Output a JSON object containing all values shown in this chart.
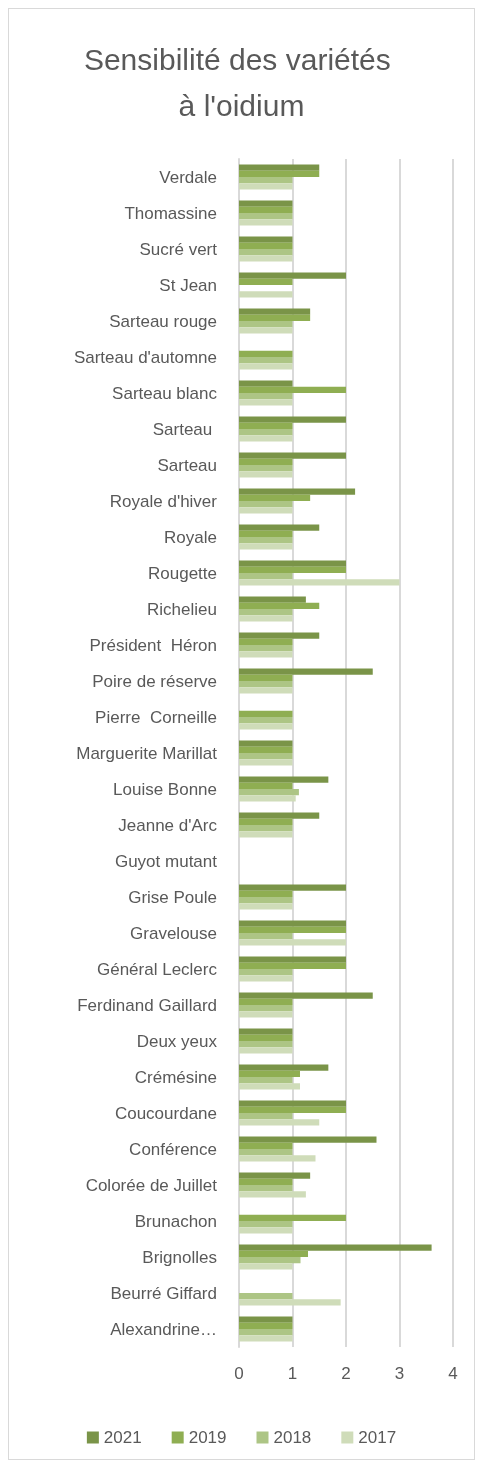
{
  "chart_data": {
    "type": "bar",
    "orientation": "horizontal",
    "title": "Sensibilité des variétés à l'oidium",
    "categories": [
      "Verdale",
      "Thomassine",
      "Sucré vert",
      "St Jean",
      "Sarteau rouge",
      "Sarteau d'automne",
      "Sarteau blanc",
      "Sarteau ",
      "Sarteau",
      "Royale d'hiver",
      "Royale",
      "Rougette",
      "Richelieu",
      "Président  Héron",
      "Poire de réserve",
      "Pierre  Corneille",
      "Marguerite Marillat",
      "Louise Bonne",
      "Jeanne d'Arc",
      "Guyot mutant",
      "Grise Poule",
      "Gravelouse",
      "Général Leclerc",
      "Ferdinand Gaillard",
      "Deux yeux",
      "Crémésine",
      "Coucourdane",
      "Conférence",
      "Colorée de Juillet",
      "Brunachon",
      "Brignolles",
      "Beurré Giffard",
      "Alexandrine…"
    ],
    "series": [
      {
        "name": "2021",
        "color": "#7a9448",
        "values": [
          1.5,
          1,
          1,
          2,
          1.33,
          null,
          1,
          2,
          2,
          2.17,
          1.5,
          2,
          1.25,
          1.5,
          2.5,
          null,
          1,
          1.67,
          1.5,
          null,
          2,
          2,
          2,
          2.5,
          1,
          1.67,
          2,
          2.57,
          1.33,
          null,
          3.6,
          null,
          1
        ]
      },
      {
        "name": "2019",
        "color": "#8fae52",
        "values": [
          1.5,
          1,
          1,
          1,
          1.33,
          1,
          2,
          1,
          1,
          1.33,
          1,
          2,
          1.5,
          1,
          1,
          1,
          1,
          1,
          1,
          null,
          1,
          2,
          2,
          1,
          1,
          1.14,
          2,
          1,
          1,
          2,
          1.29,
          null,
          1
        ]
      },
      {
        "name": "2018",
        "color": "#adc585",
        "values": [
          1,
          1,
          1,
          null,
          1,
          1,
          1,
          1,
          1,
          1,
          1,
          1,
          1,
          1,
          1,
          1,
          1,
          1.12,
          1,
          null,
          1,
          1,
          1,
          1,
          1,
          1,
          1,
          1,
          1,
          1,
          1.15,
          1,
          1
        ]
      },
      {
        "name": "2017",
        "color": "#cfdcb9",
        "values": [
          1,
          1,
          1,
          1,
          1,
          1,
          1,
          1,
          1,
          1,
          1,
          3,
          1,
          1,
          1,
          1,
          1,
          1.06,
          1,
          null,
          1,
          2,
          1,
          1,
          1,
          1.14,
          1.5,
          1.43,
          1.25,
          1,
          1,
          1.9,
          1
        ]
      }
    ],
    "xlim": [
      0,
      4
    ],
    "xticks": [
      0,
      1,
      2,
      3,
      4
    ],
    "grid": "x",
    "legend": "bottom"
  }
}
